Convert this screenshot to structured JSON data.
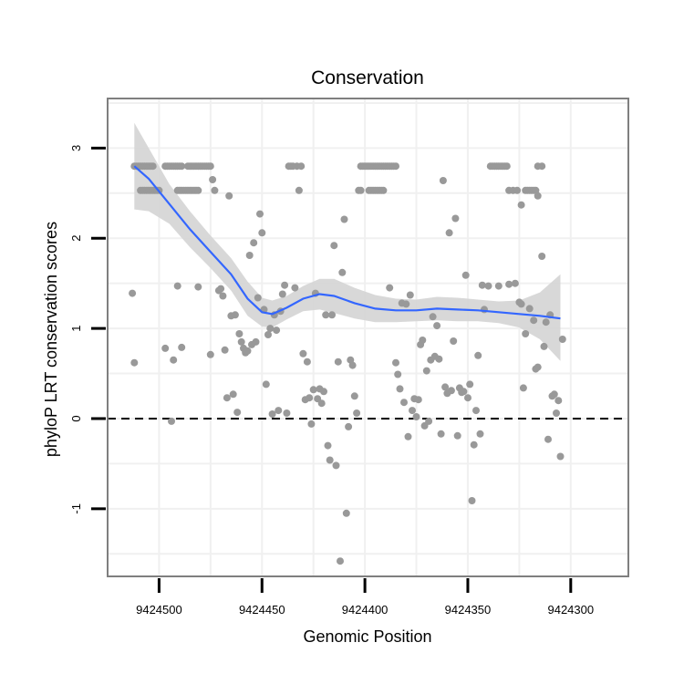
{
  "chart_data": {
    "type": "scatter",
    "title": "Conservation",
    "xlabel": "Genomic Position",
    "ylabel": "phyloP LRT conservation scores",
    "x_reversed": true,
    "xlim": [
      9424525,
      9424272
    ],
    "ylim": [
      -1.75,
      3.55
    ],
    "x_ticks": [
      9424500,
      9424450,
      9424400,
      9424350,
      9424300
    ],
    "x_tick_labels": [
      "9424500",
      "9424450",
      "9424400",
      "9424350",
      "9424300"
    ],
    "y_ticks": [
      -1,
      0,
      1,
      2,
      3
    ],
    "y_tick_labels": [
      "-1",
      "0",
      "1",
      "2",
      "3"
    ],
    "grid": true,
    "reference_line": {
      "y": 0,
      "style": "dashed",
      "color": "#000000"
    },
    "colors": {
      "points": "#999999",
      "smooth_line": "#3366ff",
      "confidence_band": "#d4d4d4",
      "grid": "#f0f0f0",
      "panel_border": "#7f7f7f"
    },
    "scatter_points": [
      [
        9424512,
        2.8
      ],
      [
        9424511,
        2.8
      ],
      [
        9424510,
        2.8
      ],
      [
        9424509,
        2.8
      ],
      [
        9424508,
        2.8
      ],
      [
        9424507,
        2.8
      ],
      [
        9424506,
        2.8
      ],
      [
        9424505,
        2.8
      ],
      [
        9424504,
        2.8
      ],
      [
        9424503,
        2.8
      ],
      [
        9424509,
        2.53
      ],
      [
        9424508,
        2.53
      ],
      [
        9424507,
        2.53
      ],
      [
        9424506,
        2.53
      ],
      [
        9424505,
        2.53
      ],
      [
        9424504,
        2.53
      ],
      [
        9424503,
        2.53
      ],
      [
        9424502,
        2.53
      ],
      [
        9424501,
        2.53
      ],
      [
        9424500,
        2.53
      ],
      [
        9424497,
        2.8
      ],
      [
        9424496,
        2.8
      ],
      [
        9424495,
        2.8
      ],
      [
        9424494,
        2.8
      ],
      [
        9424493,
        2.8
      ],
      [
        9424492,
        2.8
      ],
      [
        9424491,
        2.8
      ],
      [
        9424490,
        2.8
      ],
      [
        9424489,
        2.8
      ],
      [
        9424486,
        2.8
      ],
      [
        9424485,
        2.8
      ],
      [
        9424484,
        2.8
      ],
      [
        9424483,
        2.8
      ],
      [
        9424482,
        2.8
      ],
      [
        9424481,
        2.8
      ],
      [
        9424480,
        2.8
      ],
      [
        9424479,
        2.8
      ],
      [
        9424478,
        2.8
      ],
      [
        9424477,
        2.8
      ],
      [
        9424476,
        2.8
      ],
      [
        9424475,
        2.8
      ],
      [
        9424491,
        2.53
      ],
      [
        9424490,
        2.53
      ],
      [
        9424489,
        2.53
      ],
      [
        9424488,
        2.53
      ],
      [
        9424487,
        2.53
      ],
      [
        9424486,
        2.53
      ],
      [
        9424485,
        2.53
      ],
      [
        9424484,
        2.53
      ],
      [
        9424483,
        2.53
      ],
      [
        9424482,
        2.53
      ],
      [
        9424481,
        2.53
      ],
      [
        9424513,
        1.39
      ],
      [
        9424512,
        0.62
      ],
      [
        9424497,
        0.78
      ],
      [
        9424494,
        -0.03
      ],
      [
        9424493,
        0.65
      ],
      [
        9424491,
        1.47
      ],
      [
        9424489,
        0.79
      ],
      [
        9424481,
        1.46
      ],
      [
        9424475,
        0.71
      ],
      [
        9424474,
        2.65
      ],
      [
        9424473,
        2.53
      ],
      [
        9424471,
        1.42
      ],
      [
        9424470,
        1.44
      ],
      [
        9424469,
        1.36
      ],
      [
        9424468,
        0.76
      ],
      [
        9424467,
        0.23
      ],
      [
        9424466,
        2.47
      ],
      [
        9424465,
        1.14
      ],
      [
        9424464,
        0.27
      ],
      [
        9424463,
        1.15
      ],
      [
        9424462,
        0.07
      ],
      [
        9424461,
        0.94
      ],
      [
        9424460,
        0.85
      ],
      [
        9424459,
        0.78
      ],
      [
        9424458,
        0.73
      ],
      [
        9424457,
        0.75
      ],
      [
        9424456,
        1.81
      ],
      [
        9424455,
        0.82
      ],
      [
        9424454,
        1.95
      ],
      [
        9424453,
        0.85
      ],
      [
        9424452,
        1.34
      ],
      [
        9424451,
        2.27
      ],
      [
        9424450,
        2.06
      ],
      [
        9424449,
        1.21
      ],
      [
        9424448,
        0.38
      ],
      [
        9424447,
        0.93
      ],
      [
        9424446,
        1.0
      ],
      [
        9424445,
        0.05
      ],
      [
        9424444,
        1.15
      ],
      [
        9424443,
        0.98
      ],
      [
        9424442,
        0.09
      ],
      [
        9424441,
        1.19
      ],
      [
        9424440,
        1.38
      ],
      [
        9424439,
        1.48
      ],
      [
        9424438,
        0.06
      ],
      [
        9424437,
        2.8
      ],
      [
        9424436,
        2.8
      ],
      [
        9424435,
        2.8
      ],
      [
        9424434,
        1.45
      ],
      [
        9424433,
        2.8
      ],
      [
        9424432,
        2.53
      ],
      [
        9424431,
        2.8
      ],
      [
        9424430,
        0.72
      ],
      [
        9424429,
        0.21
      ],
      [
        9424428,
        0.63
      ],
      [
        9424427,
        0.23
      ],
      [
        9424426,
        -0.06
      ],
      [
        9424425,
        0.32
      ],
      [
        9424424,
        1.39
      ],
      [
        9424423,
        0.22
      ],
      [
        9424422,
        0.33
      ],
      [
        9424421,
        0.17
      ],
      [
        9424420,
        0.3
      ],
      [
        9424419,
        1.15
      ],
      [
        9424418,
        -0.3
      ],
      [
        9424417,
        -0.46
      ],
      [
        9424416,
        1.15
      ],
      [
        9424415,
        1.92
      ],
      [
        9424414,
        -0.52
      ],
      [
        9424413,
        0.63
      ],
      [
        9424412,
        -1.58
      ],
      [
        9424411,
        1.62
      ],
      [
        9424410,
        2.21
      ],
      [
        9424409,
        -1.05
      ],
      [
        9424408,
        -0.09
      ],
      [
        9424407,
        0.65
      ],
      [
        9424406,
        0.59
      ],
      [
        9424405,
        0.25
      ],
      [
        9424404,
        0.06
      ],
      [
        9424402,
        2.8
      ],
      [
        9424401,
        2.8
      ],
      [
        9424400,
        2.8
      ],
      [
        9424399,
        2.8
      ],
      [
        9424398,
        2.8
      ],
      [
        9424397,
        2.8
      ],
      [
        9424396,
        2.8
      ],
      [
        9424395,
        2.8
      ],
      [
        9424394,
        2.8
      ],
      [
        9424393,
        2.8
      ],
      [
        9424392,
        2.8
      ],
      [
        9424391,
        2.8
      ],
      [
        9424390,
        2.8
      ],
      [
        9424389,
        2.8
      ],
      [
        9424388,
        2.8
      ],
      [
        9424387,
        2.8
      ],
      [
        9424386,
        2.8
      ],
      [
        9424385,
        2.8
      ],
      [
        9424403,
        2.53
      ],
      [
        9424402,
        2.53
      ],
      [
        9424398,
        2.53
      ],
      [
        9424397,
        2.53
      ],
      [
        9424396,
        2.53
      ],
      [
        9424395,
        2.53
      ],
      [
        9424394,
        2.53
      ],
      [
        9424393,
        2.53
      ],
      [
        9424392,
        2.53
      ],
      [
        9424391,
        2.53
      ],
      [
        9424388,
        1.45
      ],
      [
        9424385,
        0.62
      ],
      [
        9424384,
        0.49
      ],
      [
        9424383,
        0.33
      ],
      [
        9424382,
        1.28
      ],
      [
        9424381,
        0.18
      ],
      [
        9424380,
        1.27
      ],
      [
        9424379,
        -0.2
      ],
      [
        9424378,
        1.37
      ],
      [
        9424377,
        0.09
      ],
      [
        9424376,
        0.22
      ],
      [
        9424375,
        0.02
      ],
      [
        9424374,
        0.21
      ],
      [
        9424373,
        0.82
      ],
      [
        9424372,
        0.87
      ],
      [
        9424371,
        -0.08
      ],
      [
        9424370,
        0.53
      ],
      [
        9424369,
        -0.03
      ],
      [
        9424368,
        0.65
      ],
      [
        9424367,
        1.13
      ],
      [
        9424366,
        0.69
      ],
      [
        9424365,
        1.03
      ],
      [
        9424364,
        0.66
      ],
      [
        9424363,
        -0.17
      ],
      [
        9424362,
        2.64
      ],
      [
        9424361,
        0.35
      ],
      [
        9424360,
        0.28
      ],
      [
        9424359,
        2.06
      ],
      [
        9424358,
        0.31
      ],
      [
        9424357,
        0.86
      ],
      [
        9424356,
        2.22
      ],
      [
        9424355,
        -0.19
      ],
      [
        9424354,
        0.34
      ],
      [
        9424353,
        0.29
      ],
      [
        9424352,
        0.3
      ],
      [
        9424351,
        1.59
      ],
      [
        9424350,
        0.23
      ],
      [
        9424349,
        0.38
      ],
      [
        9424348,
        -0.91
      ],
      [
        9424347,
        -0.29
      ],
      [
        9424346,
        0.09
      ],
      [
        9424345,
        0.7
      ],
      [
        9424344,
        -0.17
      ],
      [
        9424343,
        1.48
      ],
      [
        9424342,
        1.21
      ],
      [
        9424339,
        2.8
      ],
      [
        9424338,
        2.8
      ],
      [
        9424337,
        2.8
      ],
      [
        9424336,
        2.8
      ],
      [
        9424335,
        2.8
      ],
      [
        9424334,
        2.8
      ],
      [
        9424333,
        2.8
      ],
      [
        9424332,
        2.8
      ],
      [
        9424331,
        2.8
      ],
      [
        9424340,
        1.47
      ],
      [
        9424335,
        1.47
      ],
      [
        9424330,
        2.53
      ],
      [
        9424328,
        2.53
      ],
      [
        9424326,
        2.53
      ],
      [
        9424324,
        2.37
      ],
      [
        9424322,
        2.53
      ],
      [
        9424321,
        2.53
      ],
      [
        9424320,
        2.53
      ],
      [
        9424319,
        2.53
      ],
      [
        9424318,
        2.53
      ],
      [
        9424317,
        2.53
      ],
      [
        9424316,
        2.47
      ],
      [
        9424316,
        2.8
      ],
      [
        9424314,
        2.8
      ],
      [
        9424330,
        1.49
      ],
      [
        9424327,
        1.5
      ],
      [
        9424325,
        1.29
      ],
      [
        9424324,
        1.27
      ],
      [
        9424323,
        0.34
      ],
      [
        9424322,
        0.94
      ],
      [
        9424320,
        1.22
      ],
      [
        9424318,
        1.09
      ],
      [
        9424317,
        0.55
      ],
      [
        9424316,
        0.57
      ],
      [
        9424314,
        1.8
      ],
      [
        9424313,
        0.8
      ],
      [
        9424312,
        1.07
      ],
      [
        9424311,
        -0.23
      ],
      [
        9424310,
        1.15
      ],
      [
        9424309,
        0.25
      ],
      [
        9424308,
        0.27
      ],
      [
        9424307,
        0.06
      ],
      [
        9424306,
        0.2
      ],
      [
        9424305,
        -0.42
      ],
      [
        9424304,
        0.88
      ]
    ],
    "smooth_curve": [
      [
        9424512,
        2.8
      ],
      [
        9424505,
        2.66
      ],
      [
        9424495,
        2.38
      ],
      [
        9424485,
        2.1
      ],
      [
        9424475,
        1.85
      ],
      [
        9424465,
        1.6
      ],
      [
        9424457,
        1.33
      ],
      [
        9424450,
        1.18
      ],
      [
        9424445,
        1.16
      ],
      [
        9424438,
        1.23
      ],
      [
        9424430,
        1.33
      ],
      [
        9424422,
        1.38
      ],
      [
        9424415,
        1.36
      ],
      [
        9424405,
        1.28
      ],
      [
        9424395,
        1.22
      ],
      [
        9424385,
        1.2
      ],
      [
        9424375,
        1.2
      ],
      [
        9424365,
        1.22
      ],
      [
        9424355,
        1.21
      ],
      [
        9424345,
        1.2
      ],
      [
        9424335,
        1.18
      ],
      [
        9424325,
        1.16
      ],
      [
        9424315,
        1.14
      ],
      [
        9424305,
        1.11
      ]
    ],
    "band_upper": [
      [
        9424512,
        3.28
      ],
      [
        9424505,
        3.0
      ],
      [
        9424495,
        2.6
      ],
      [
        9424485,
        2.3
      ],
      [
        9424475,
        2.03
      ],
      [
        9424465,
        1.78
      ],
      [
        9424457,
        1.52
      ],
      [
        9424450,
        1.34
      ],
      [
        9424445,
        1.31
      ],
      [
        9424438,
        1.36
      ],
      [
        9424430,
        1.47
      ],
      [
        9424422,
        1.55
      ],
      [
        9424415,
        1.55
      ],
      [
        9424405,
        1.45
      ],
      [
        9424395,
        1.37
      ],
      [
        9424385,
        1.33
      ],
      [
        9424375,
        1.32
      ],
      [
        9424365,
        1.35
      ],
      [
        9424355,
        1.34
      ],
      [
        9424345,
        1.32
      ],
      [
        9424335,
        1.3
      ],
      [
        9424325,
        1.31
      ],
      [
        9424315,
        1.4
      ],
      [
        9424305,
        1.6
      ]
    ],
    "band_lower": [
      [
        9424512,
        2.32
      ],
      [
        9424505,
        2.3
      ],
      [
        9424495,
        2.16
      ],
      [
        9424485,
        1.9
      ],
      [
        9424475,
        1.67
      ],
      [
        9424465,
        1.42
      ],
      [
        9424457,
        1.14
      ],
      [
        9424450,
        1.02
      ],
      [
        9424445,
        1.01
      ],
      [
        9424438,
        1.1
      ],
      [
        9424430,
        1.19
      ],
      [
        9424422,
        1.21
      ],
      [
        9424415,
        1.17
      ],
      [
        9424405,
        1.11
      ],
      [
        9424395,
        1.07
      ],
      [
        9424385,
        1.07
      ],
      [
        9424375,
        1.08
      ],
      [
        9424365,
        1.09
      ],
      [
        9424355,
        1.08
      ],
      [
        9424345,
        1.08
      ],
      [
        9424335,
        1.06
      ],
      [
        9424325,
        1.01
      ],
      [
        9424315,
        0.88
      ],
      [
        9424305,
        0.64
      ]
    ]
  }
}
